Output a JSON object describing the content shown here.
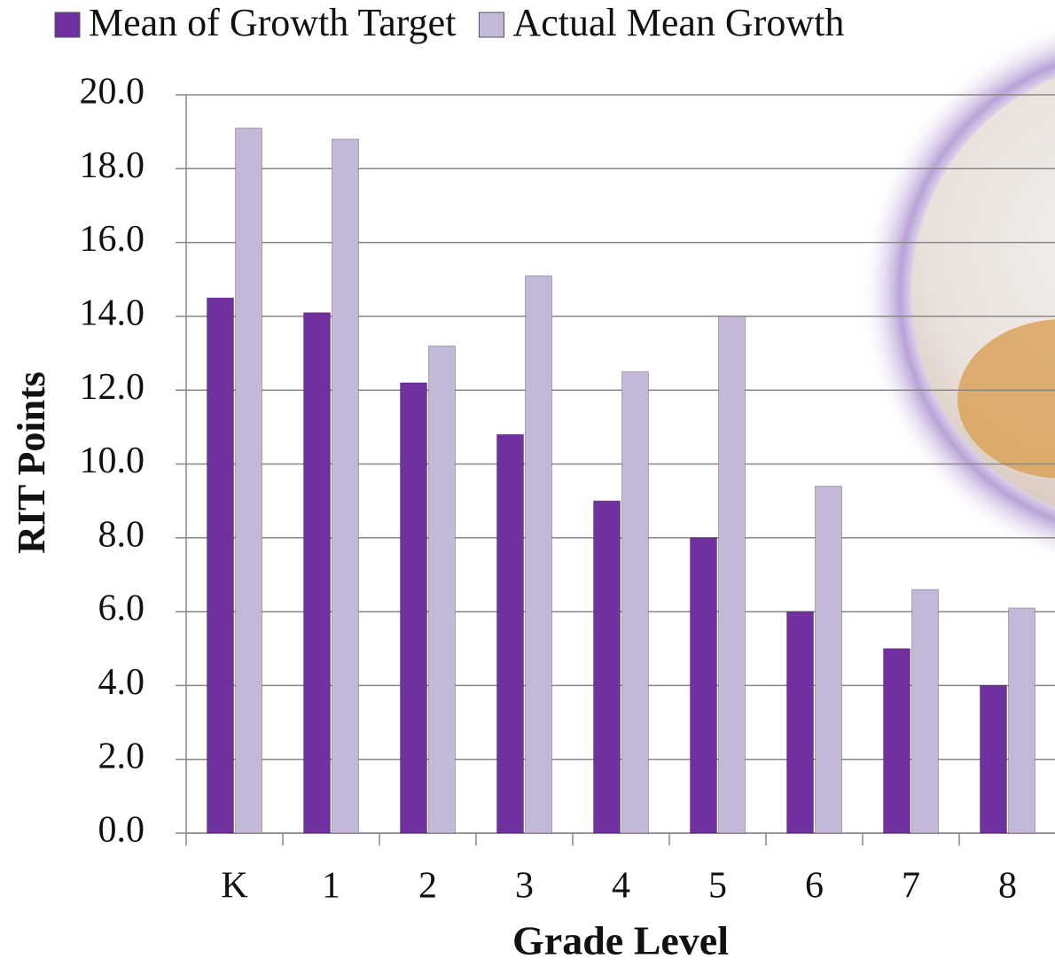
{
  "chart_data": {
    "type": "bar",
    "x_label": "Grade Level",
    "y_label": "RIT Points",
    "categories": [
      "K",
      "1",
      "2",
      "3",
      "4",
      "5",
      "6",
      "7",
      "8"
    ],
    "series": [
      {
        "name": "Mean of Growth Target",
        "color": "#7030a0",
        "values": [
          14.5,
          14.1,
          12.2,
          10.8,
          9.0,
          8.0,
          6.0,
          5.0,
          4.0
        ]
      },
      {
        "name": "Actual Mean Growth",
        "color": "#c4b8d8",
        "values": [
          19.1,
          18.8,
          13.2,
          15.1,
          12.5,
          14.0,
          9.4,
          6.6,
          6.1
        ]
      }
    ],
    "ylim": [
      0,
      20
    ],
    "yticks": [
      {
        "value": 0,
        "label": "0.0"
      },
      {
        "value": 2,
        "label": "2.0"
      },
      {
        "value": 4,
        "label": "4.0"
      },
      {
        "value": 6,
        "label": "6.0"
      },
      {
        "value": 8,
        "label": "8.0"
      },
      {
        "value": 10,
        "label": "10.0"
      },
      {
        "value": 12,
        "label": "12.0"
      },
      {
        "value": 14,
        "label": "14.0"
      },
      {
        "value": 16,
        "label": "16.0"
      },
      {
        "value": 18,
        "label": "18.0"
      },
      {
        "value": 20,
        "label": "20.0"
      }
    ],
    "grid": true,
    "legend": "top"
  }
}
